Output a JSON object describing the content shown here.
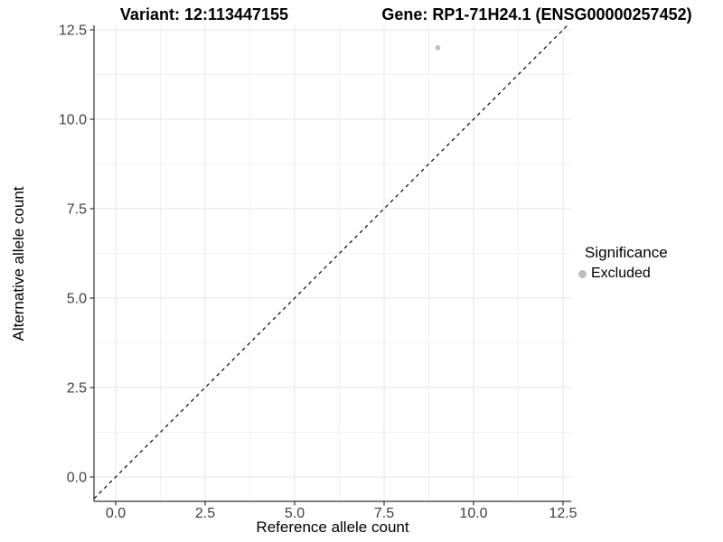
{
  "header": {
    "variant_title": "Variant: 12:113447155",
    "gene_title": "Gene: RP1-71H24.1 (ENSG00000257452)"
  },
  "chart_data": {
    "type": "scatter",
    "title": "Variant: 12:113447155   Gene: RP1-71H24.1 (ENSG00000257452)",
    "xlabel": "Reference allele count",
    "ylabel": "Alternative allele count",
    "xlim": [
      -0.6,
      12.7
    ],
    "ylim": [
      -0.7,
      12.6
    ],
    "x_ticks": [
      0.0,
      2.5,
      5.0,
      7.5,
      10.0,
      12.5
    ],
    "y_ticks": [
      0.0,
      2.5,
      5.0,
      7.5,
      10.0,
      12.5
    ],
    "x_tick_labels": [
      "0.0",
      "2.5",
      "5.0",
      "7.5",
      "10.0",
      "12.5"
    ],
    "y_tick_labels": [
      "0.0",
      "2.5",
      "5.0",
      "7.5",
      "10.0",
      "12.5"
    ],
    "x_minor_ticks": [
      1.25,
      3.75,
      6.25,
      8.75,
      11.25
    ],
    "y_minor_ticks": [
      1.25,
      3.75,
      6.25,
      8.75,
      11.25
    ],
    "grid": true,
    "legend_position": "right",
    "series": [
      {
        "name": "Excluded",
        "color": "#bebebe",
        "points": [
          {
            "x": 9,
            "y": 12
          }
        ]
      }
    ],
    "reference_line": {
      "equation": "y = x",
      "style": "dashed",
      "color": "#000000"
    },
    "legend": {
      "title": "Significance",
      "entries": [
        {
          "label": "Excluded",
          "color": "#bebebe"
        }
      ]
    },
    "style": {
      "grid_major_color": "#e5e5e5",
      "grid_minor_color": "#f1f1f1",
      "axis_color": "#333333",
      "tick_label_color": "#404040",
      "background": "#ffffff"
    }
  }
}
